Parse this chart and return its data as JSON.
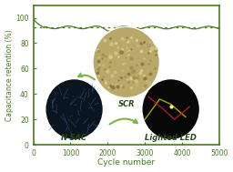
{
  "title": "",
  "xlabel": "Cycle number",
  "ylabel": "Capacitance retention (%)",
  "xlim": [
    0,
    5000
  ],
  "ylim": [
    0,
    110
  ],
  "yticks": [
    0,
    20,
    40,
    60,
    80,
    100
  ],
  "xticks": [
    0,
    1000,
    2000,
    3000,
    4000,
    5000
  ],
  "line_color": "#4a7a20",
  "dotted_line_color": "#4a7a20",
  "dotted_y": 92.5,
  "background_color": "#ffffff",
  "spine_color": "#4a7a20",
  "tick_color": "#4a7a20",
  "label_color": "#4a7a20",
  "figsize": [
    2.56,
    1.89
  ],
  "dpi": 100,
  "scr_label": "SCR",
  "nsac_label": "N-SAC",
  "led_label": "Lighted LED",
  "arrow_color": "#7ab840"
}
